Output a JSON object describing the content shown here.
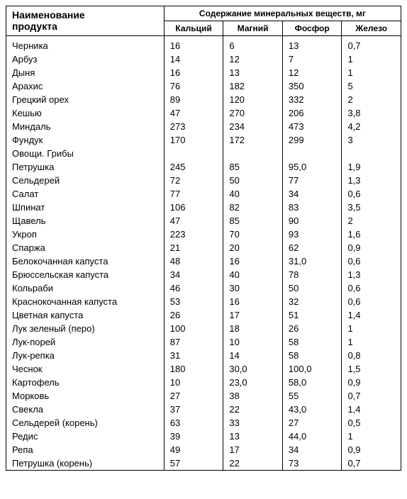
{
  "table": {
    "header": {
      "name_label_line1": "Наименование",
      "name_label_line2": "продукта",
      "group_label": "Содержание минеральных веществ, мг",
      "columns": [
        "Кальций",
        "Магний",
        "Фосфор",
        "Железо"
      ]
    },
    "rows": [
      {
        "name": "Черника",
        "v": [
          "16",
          "6",
          "13",
          "0,7"
        ]
      },
      {
        "name": "Арбуз",
        "v": [
          "14",
          "12",
          "7",
          "1"
        ]
      },
      {
        "name": "Дыня",
        "v": [
          "16",
          "13",
          "12",
          "1"
        ]
      },
      {
        "name": "Арахис",
        "v": [
          "76",
          "182",
          "350",
          "5"
        ]
      },
      {
        "name": "Грецкий орех",
        "v": [
          "89",
          "120",
          "332",
          "2"
        ]
      },
      {
        "name": "Кешью",
        "v": [
          "47",
          "270",
          "206",
          "3,8"
        ]
      },
      {
        "name": "Миндаль",
        "v": [
          "273",
          "234",
          "473",
          "4,2"
        ]
      },
      {
        "name": "Фундук",
        "v": [
          "170",
          "172",
          "299",
          "3"
        ]
      },
      {
        "name": "Овощи. Грибы",
        "v": [
          "",
          "",
          "",
          ""
        ]
      },
      {
        "name": "Петрушка",
        "v": [
          "245",
          "85",
          "95,0",
          "1,9"
        ]
      },
      {
        "name": "Сельдерей",
        "v": [
          "72",
          "50",
          "77",
          "1,3"
        ]
      },
      {
        "name": "Салат",
        "v": [
          "77",
          "40",
          "34",
          "0,6"
        ]
      },
      {
        "name": "Шпинат",
        "v": [
          "106",
          "82",
          "83",
          "3,5"
        ]
      },
      {
        "name": "Щавель",
        "v": [
          "47",
          "85",
          "90",
          "2"
        ]
      },
      {
        "name": "Укроп",
        "v": [
          "223",
          "70",
          "93",
          "1,6"
        ]
      },
      {
        "name": "Спаржа",
        "v": [
          "21",
          "20",
          "62",
          "0,9"
        ]
      },
      {
        "name": "Белокочанная капуста",
        "v": [
          "48",
          "16",
          "31,0",
          "0,6"
        ]
      },
      {
        "name": "Брюссельская капуста",
        "v": [
          "34",
          "40",
          "78",
          "1,3"
        ]
      },
      {
        "name": "Кольраби",
        "v": [
          "46",
          "30",
          "50",
          "0,6"
        ]
      },
      {
        "name": "Краснокочанная капуста",
        "v": [
          "53",
          "16",
          "32",
          "0,6"
        ]
      },
      {
        "name": "Цветная капуста",
        "v": [
          "26",
          "17",
          "51",
          "1,4"
        ]
      },
      {
        "name": "Лук зеленый (перо)",
        "v": [
          "100",
          "18",
          "26",
          "1"
        ]
      },
      {
        "name": "Лук-порей",
        "v": [
          "87",
          "10",
          "58",
          "1"
        ]
      },
      {
        "name": "Лук-репка",
        "v": [
          "31",
          "14",
          "58",
          "0,8"
        ]
      },
      {
        "name": "Чеснок",
        "v": [
          "180",
          "30,0",
          "100,0",
          "1,5"
        ]
      },
      {
        "name": "Картофель",
        "v": [
          "10",
          "23,0",
          "58,0",
          "0,9"
        ]
      },
      {
        "name": "Морковь",
        "v": [
          "27",
          "38",
          "55",
          "0,7"
        ]
      },
      {
        "name": "Свекла",
        "v": [
          "37",
          "22",
          "43,0",
          "1,4"
        ]
      },
      {
        "name": "Сельдерей (корень)",
        "v": [
          "63",
          "33",
          "27",
          "0,5"
        ]
      },
      {
        "name": "Редис",
        "v": [
          "39",
          "13",
          "44,0",
          "1"
        ]
      },
      {
        "name": "Репа",
        "v": [
          "49",
          "17",
          "34",
          "0,9"
        ]
      },
      {
        "name": "Петрушка (корень)",
        "v": [
          "57",
          "22",
          "73",
          "0,7"
        ]
      }
    ],
    "style": {
      "font_family": "Arial",
      "header_fontsize_pt": 11,
      "body_fontsize_pt": 10,
      "border_color": "#000000",
      "background_color": "#ffffff",
      "text_color": "#000000",
      "col_widths_pct": [
        40,
        15,
        15,
        15,
        15
      ]
    }
  }
}
